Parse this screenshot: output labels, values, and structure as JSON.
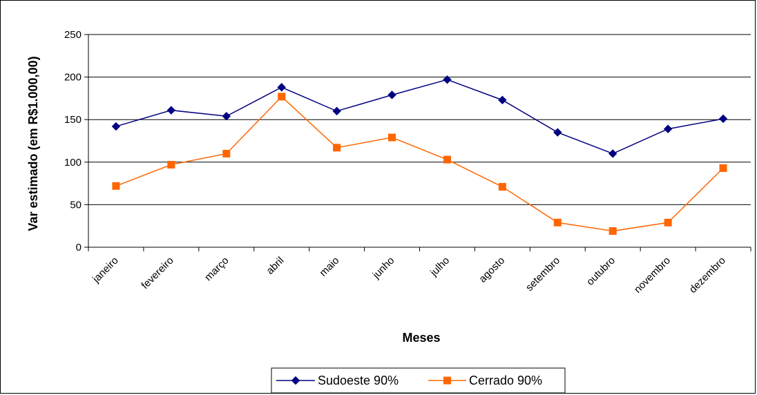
{
  "chart_data": {
    "type": "line",
    "categories": [
      "janeiro",
      "fevereiro",
      "março",
      "abril",
      "maio",
      "junho",
      "julho",
      "agosto",
      "setembro",
      "outubro",
      "novembro",
      "dezembro"
    ],
    "series": [
      {
        "name": "Sudoeste 90%",
        "values": [
          142,
          161,
          154,
          188,
          160,
          179,
          197,
          173,
          135,
          110,
          139,
          151
        ],
        "color": "#000080",
        "marker": "diamond"
      },
      {
        "name": "Cerrado 90%",
        "values": [
          72,
          97,
          110,
          177,
          117,
          129,
          103,
          71,
          29,
          19,
          29,
          93
        ],
        "color": "#FF6600",
        "marker": "square"
      }
    ],
    "xlabel": "Meses",
    "ylabel": "Var estimado (em R$1.000,00)",
    "ylim": [
      0,
      250
    ],
    "yticks": [
      0,
      50,
      100,
      150,
      200,
      250
    ],
    "grid": true,
    "legend": "bottom"
  }
}
